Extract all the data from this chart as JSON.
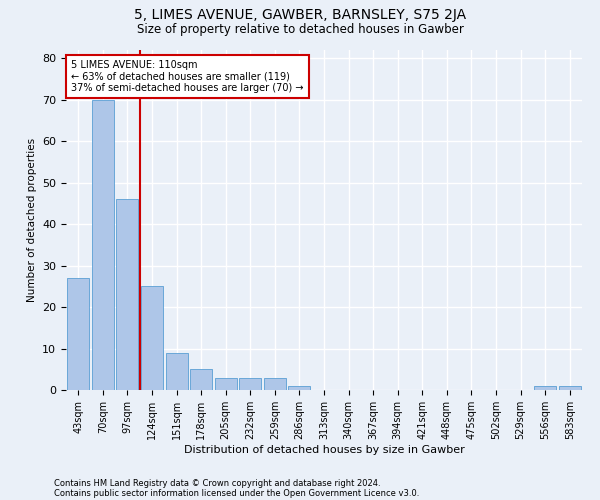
{
  "title1": "5, LIMES AVENUE, GAWBER, BARNSLEY, S75 2JA",
  "title2": "Size of property relative to detached houses in Gawber",
  "xlabel": "Distribution of detached houses by size in Gawber",
  "ylabel": "Number of detached properties",
  "footer1": "Contains HM Land Registry data © Crown copyright and database right 2024.",
  "footer2": "Contains public sector information licensed under the Open Government Licence v3.0.",
  "annotation_line1": "5 LIMES AVENUE: 110sqm",
  "annotation_line2": "← 63% of detached houses are smaller (119)",
  "annotation_line3": "37% of semi-detached houses are larger (70) →",
  "bar_categories": [
    "43sqm",
    "70sqm",
    "97sqm",
    "124sqm",
    "151sqm",
    "178sqm",
    "205sqm",
    "232sqm",
    "259sqm",
    "286sqm",
    "313sqm",
    "340sqm",
    "367sqm",
    "394sqm",
    "421sqm",
    "448sqm",
    "475sqm",
    "502sqm",
    "529sqm",
    "556sqm",
    "583sqm"
  ],
  "bar_values": [
    27,
    70,
    46,
    25,
    9,
    5,
    3,
    3,
    3,
    1,
    0,
    0,
    0,
    0,
    0,
    0,
    0,
    0,
    0,
    1,
    1
  ],
  "bar_color": "#aec6e8",
  "bar_edge_color": "#5a9fd4",
  "vline_color": "#cc0000",
  "vline_position": 2.5,
  "ylim": [
    0,
    82
  ],
  "yticks": [
    0,
    10,
    20,
    30,
    40,
    50,
    60,
    70,
    80
  ],
  "annotation_box_color": "#ffffff",
  "annotation_box_edge": "#cc0000",
  "bg_color": "#eaf0f8",
  "grid_color": "#ffffff",
  "title1_fontsize": 10,
  "title2_fontsize": 8.5,
  "xlabel_fontsize": 8,
  "ylabel_fontsize": 7.5,
  "tick_fontsize": 7,
  "footer_fontsize": 6
}
